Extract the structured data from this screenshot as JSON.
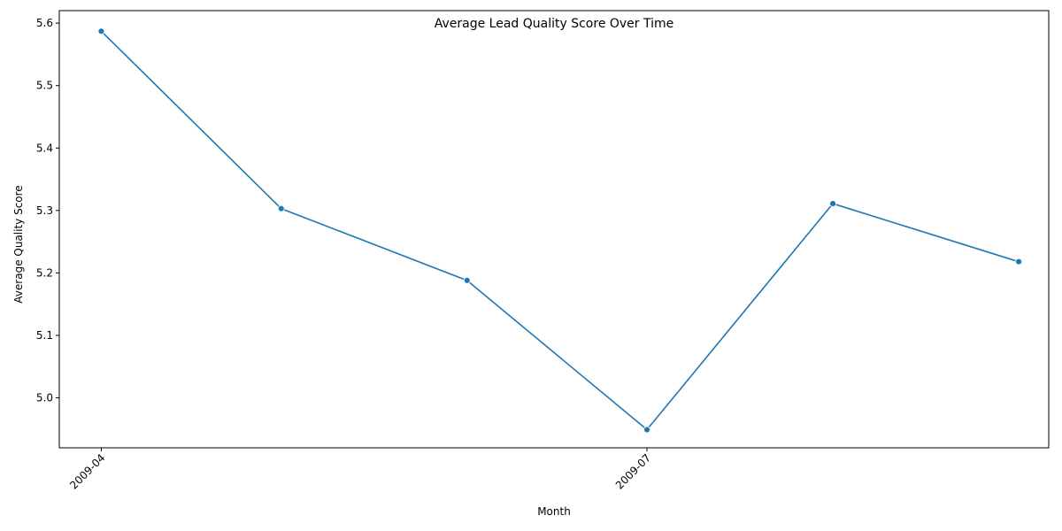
{
  "chart_data": {
    "type": "line",
    "title": "Average Lead Quality Score Over Time",
    "xlabel": "Month",
    "ylabel": "Average Quality Score",
    "x": [
      "2009-04-01",
      "2009-05-01",
      "2009-06-01",
      "2009-07-01",
      "2009-08-01",
      "2009-09-01"
    ],
    "x_tick_labels": [
      {
        "date": "2009-04-01",
        "label": "2009-04"
      },
      {
        "date": "2009-07-01",
        "label": "2009-07"
      }
    ],
    "series": [
      {
        "values": [
          5.587,
          5.303,
          5.188,
          4.949,
          5.311,
          5.218
        ],
        "color": "#1f77b4"
      }
    ],
    "xlim": [
      "2009-03-25",
      "2009-09-06"
    ],
    "ylim": [
      4.92,
      5.62
    ],
    "y_ticks": [
      5.0,
      5.1,
      5.2,
      5.3,
      5.4,
      5.5,
      5.6
    ],
    "grid": false,
    "markers": true
  }
}
